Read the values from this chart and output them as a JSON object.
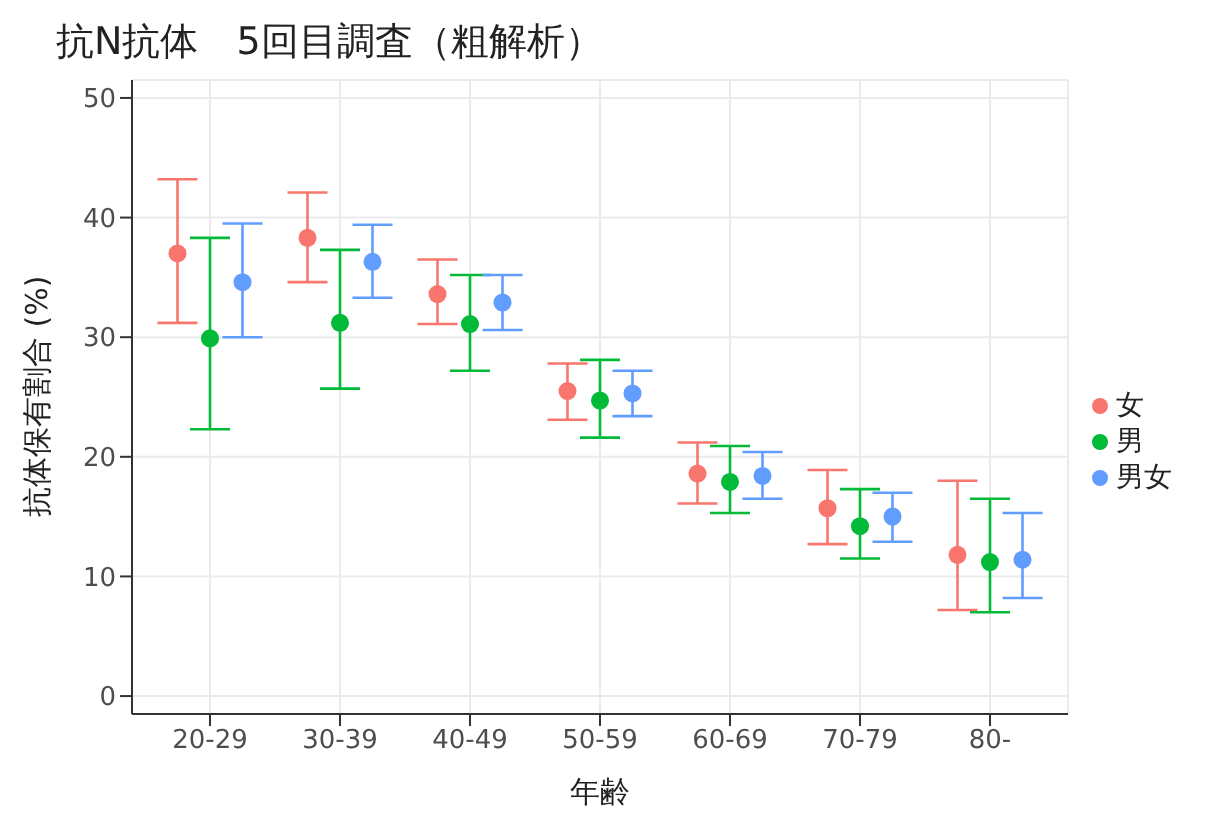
{
  "chart_data": {
    "type": "scatter",
    "title": "抗N抗体　5回目調査（粗解析）",
    "xlabel": "年齢",
    "ylabel": "抗体保有割合 (%)",
    "categories": [
      "20-29",
      "30-39",
      "40-49",
      "50-59",
      "60-69",
      "70-79",
      "80-"
    ],
    "series": [
      {
        "name": "女",
        "color": "#f8766d",
        "values": [
          37.0,
          38.3,
          33.6,
          25.5,
          18.6,
          15.7,
          11.8
        ],
        "errors": [
          [
            31.2,
            43.2
          ],
          [
            34.6,
            42.1
          ],
          [
            31.1,
            36.5
          ],
          [
            23.1,
            27.8
          ],
          [
            16.1,
            21.2
          ],
          [
            12.7,
            18.9
          ],
          [
            7.2,
            18.0
          ]
        ]
      },
      {
        "name": "男",
        "color": "#00ba38",
        "values": [
          29.9,
          31.2,
          31.1,
          24.7,
          17.9,
          14.2,
          11.2
        ],
        "errors": [
          [
            22.3,
            38.3
          ],
          [
            25.7,
            37.3
          ],
          [
            27.2,
            35.2
          ],
          [
            21.6,
            28.1
          ],
          [
            15.3,
            20.9
          ],
          [
            11.5,
            17.3
          ],
          [
            7.0,
            16.5
          ]
        ]
      },
      {
        "name": "男女",
        "color": "#619cff",
        "values": [
          34.6,
          36.3,
          32.9,
          25.3,
          18.4,
          15.0,
          11.4
        ],
        "errors": [
          [
            30.0,
            39.5
          ],
          [
            33.3,
            39.4
          ],
          [
            30.6,
            35.2
          ],
          [
            23.4,
            27.2
          ],
          [
            16.5,
            20.4
          ],
          [
            12.9,
            17.0
          ],
          [
            8.2,
            15.3
          ]
        ]
      }
    ],
    "ylim": [
      -1.5,
      51.5
    ],
    "yticks": [
      0,
      10,
      20,
      30,
      40,
      50
    ],
    "grid": true,
    "legend": "right",
    "marker": "circle"
  }
}
